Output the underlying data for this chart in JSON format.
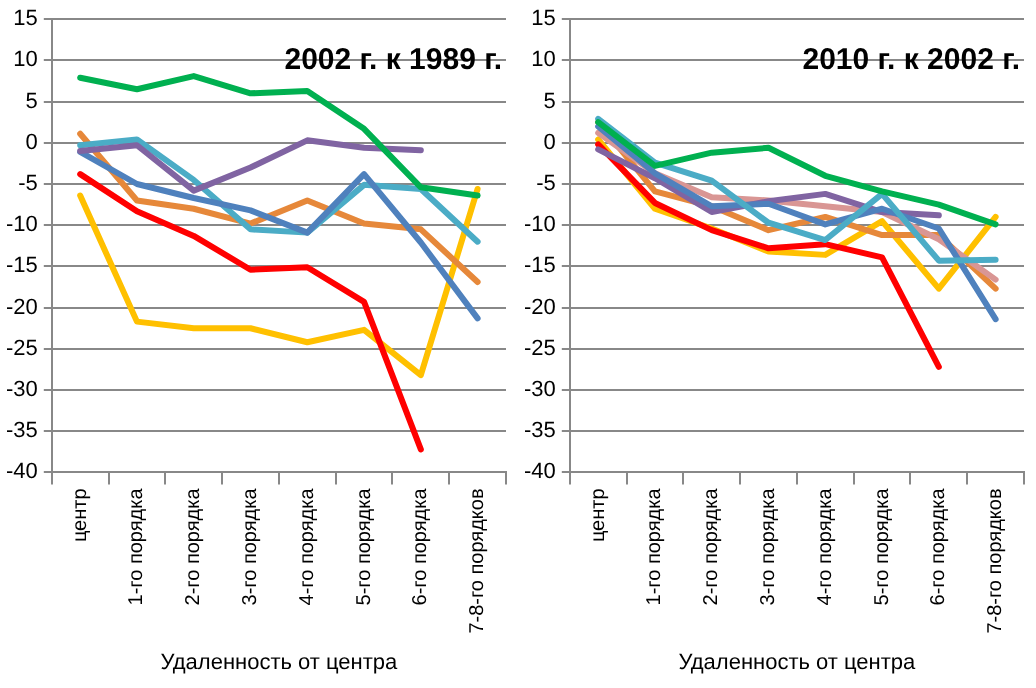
{
  "chart_data": [
    {
      "type": "line",
      "title": "2002 г. к 1989 г.",
      "xlabel": "Удаленность от центра",
      "categories": [
        "центр",
        "1-го порядка",
        "2-го порядка",
        "3-го порядка",
        "4-го порядка",
        "5-го порядка",
        "6-го порядка",
        "7-8-го порядков"
      ],
      "ylim": [
        -40,
        15
      ],
      "yticks": [
        -40,
        -35,
        -30,
        -25,
        -20,
        -15,
        -10,
        -5,
        0,
        5,
        10,
        15
      ],
      "grid": "y",
      "legend": false,
      "marker": "none",
      "series": [
        {
          "color": "#00b050",
          "values": [
            7.9,
            6.5,
            8.1,
            6.0,
            6.3,
            1.7,
            -5.4,
            -6.4
          ]
        },
        {
          "color": "#8064a2",
          "values": [
            -1,
            -0.3,
            -5.8,
            -3,
            0.3,
            -0.6,
            -0.9,
            null
          ]
        },
        {
          "color": "#4f81bd",
          "values": [
            -1.1,
            -5,
            -6.7,
            -8.2,
            -10.9,
            -3.8,
            -12.1,
            -21.3
          ]
        },
        {
          "color": "#4bacc6",
          "values": [
            -0.3,
            0.4,
            -4.5,
            -10.5,
            -10.9,
            -5.1,
            -5.6,
            -12
          ]
        },
        {
          "color": "#e6883a",
          "values": [
            1.1,
            -7,
            -8,
            -9.8,
            -7,
            -9.8,
            -10.5,
            -16.9
          ]
        },
        {
          "color": "#ff0000",
          "values": [
            -3.8,
            -8.3,
            -11.3,
            -15.4,
            -15.1,
            -19.3,
            -37.2,
            null
          ]
        },
        {
          "color": "#ffc000",
          "values": [
            -6.4,
            -21.7,
            -22.5,
            -22.5,
            -24.2,
            -22.7,
            -28.2,
            -5.6
          ]
        }
      ]
    },
    {
      "type": "line",
      "title": "2010 г. к 2002 г.",
      "xlabel": "Удаленность от центра",
      "categories": [
        "центр",
        "1-го порядка",
        "2-го порядка",
        "3-го порядка",
        "4-го порядка",
        "5-го порядка",
        "6-го порядка",
        "7-8-го порядков"
      ],
      "ylim": [
        -40,
        15
      ],
      "yticks": [
        -40,
        -35,
        -30,
        -25,
        -20,
        -15,
        -10,
        -5,
        0,
        5,
        10,
        15
      ],
      "grid": "y",
      "legend": false,
      "marker": "none",
      "series": [
        {
          "color": "#00b050",
          "values": [
            2.5,
            -2.8,
            -1.2,
            -0.6,
            -4,
            -5.9,
            -7.5,
            -9.9
          ]
        },
        {
          "color": "#4bacc6",
          "values": [
            2.9,
            -2.4,
            -4.6,
            -9.7,
            -11.8,
            -6.2,
            -14.3,
            -14.2
          ]
        },
        {
          "color": "#4f81bd",
          "values": [
            2,
            -3.7,
            -7.7,
            -7.4,
            -9.9,
            -8,
            -10.4,
            -21.4
          ]
        },
        {
          "color": "#8064a2",
          "values": [
            -0.8,
            -4.3,
            -8.4,
            -7.1,
            -6.2,
            -8.4,
            -8.8,
            null
          ]
        },
        {
          "color": "#d99694",
          "values": [
            1.2,
            -3.7,
            -6.6,
            -7,
            -7.7,
            -8.4,
            -11.7,
            -16.6
          ]
        },
        {
          "color": "#e6883a",
          "values": [
            2.5,
            -5.9,
            -7.7,
            -10.6,
            -9,
            -11.2,
            -11.2,
            -17.7
          ]
        },
        {
          "color": "#ff0000",
          "values": [
            -0.2,
            -7.3,
            -10.6,
            -12.8,
            -12.3,
            -13.9,
            -27.2,
            null
          ]
        },
        {
          "color": "#ffc000",
          "values": [
            0.4,
            -8,
            -10.4,
            -13.2,
            -13.6,
            -9.5,
            -17.7,
            -9
          ]
        }
      ]
    }
  ]
}
